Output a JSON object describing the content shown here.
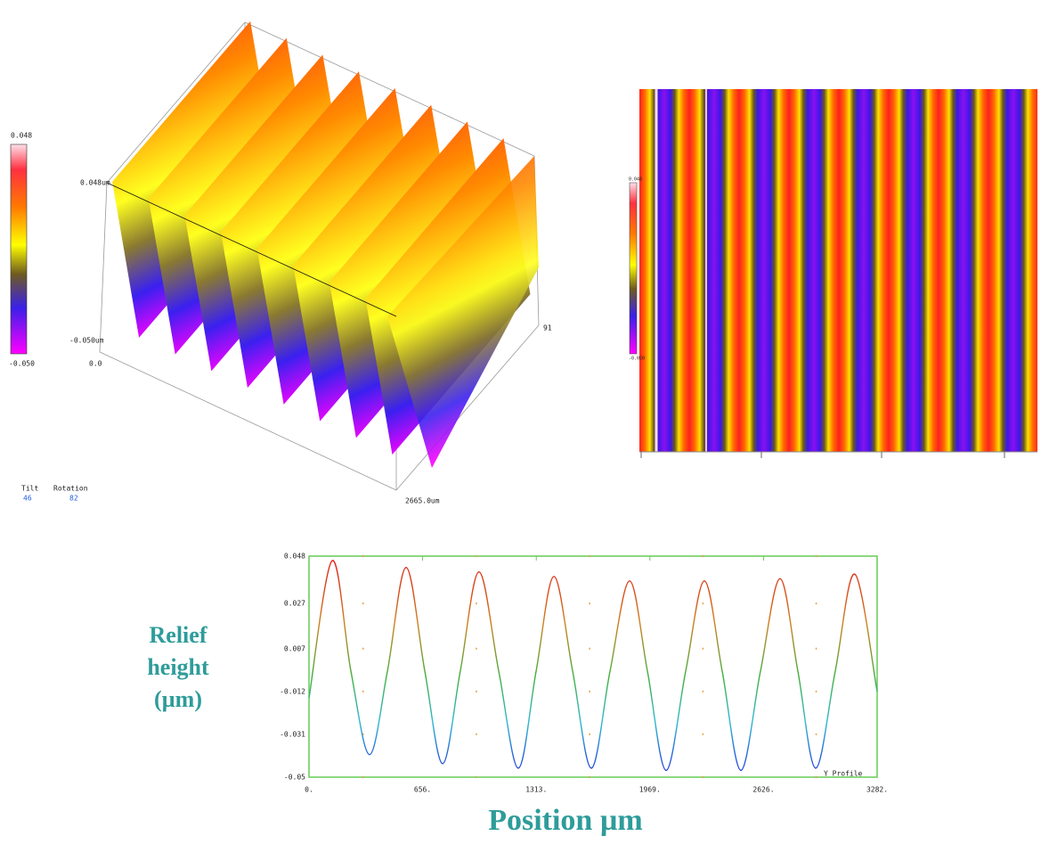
{
  "surface_3d": {
    "colorbar_top": "0.048",
    "colorbar_bottom": "-0.050",
    "z_top": "0.048um",
    "z_bottom": "-0.050um",
    "origin": "0.0",
    "y_end": "91",
    "x_end": "2665.0um",
    "tilt_label": "Tilt",
    "tilt_value": "46",
    "rotation_label": "Rotation",
    "rotation_value": "82"
  },
  "map_2d": {
    "colorbar_top": "0.048",
    "colorbar_bottom": "-0.050"
  },
  "chart_data": {
    "type": "line",
    "x_label": "Position µm",
    "y_label": "Relief height (µm)",
    "x": [
      0,
      134,
      242,
      350,
      453,
      561,
      669,
      772,
      874,
      982,
      1096,
      1209,
      1312,
      1415,
      1523,
      1631,
      1739,
      1852,
      1955,
      2063,
      2176,
      2284,
      2387,
      2495,
      2608,
      2721,
      2824,
      2927,
      3040,
      3153,
      3282
    ],
    "series": [
      {
        "name": "Y Profile",
        "values": [
          -0.015,
          0.046,
          -0.003,
          -0.04,
          -0.003,
          0.043,
          -0.003,
          -0.044,
          -0.003,
          0.041,
          -0.003,
          -0.046,
          -0.003,
          0.039,
          -0.003,
          -0.046,
          -0.003,
          0.037,
          -0.003,
          -0.047,
          -0.003,
          0.037,
          -0.003,
          -0.047,
          -0.003,
          0.038,
          -0.003,
          -0.046,
          -0.003,
          0.04,
          -0.012
        ]
      }
    ],
    "xlim": [
      0,
      3282
    ],
    "ylim": [
      -0.05,
      0.048
    ],
    "xticks": [
      {
        "value": 0,
        "label": "0."
      },
      {
        "value": 656,
        "label": "656."
      },
      {
        "value": 1313,
        "label": "1313."
      },
      {
        "value": 1969,
        "label": "1969."
      },
      {
        "value": 2626,
        "label": "2626."
      },
      {
        "value": 3282,
        "label": "3282."
      }
    ],
    "yticks": [
      0.048,
      0.027,
      0.007,
      -0.012,
      -0.031,
      -0.05
    ],
    "grid": true
  }
}
